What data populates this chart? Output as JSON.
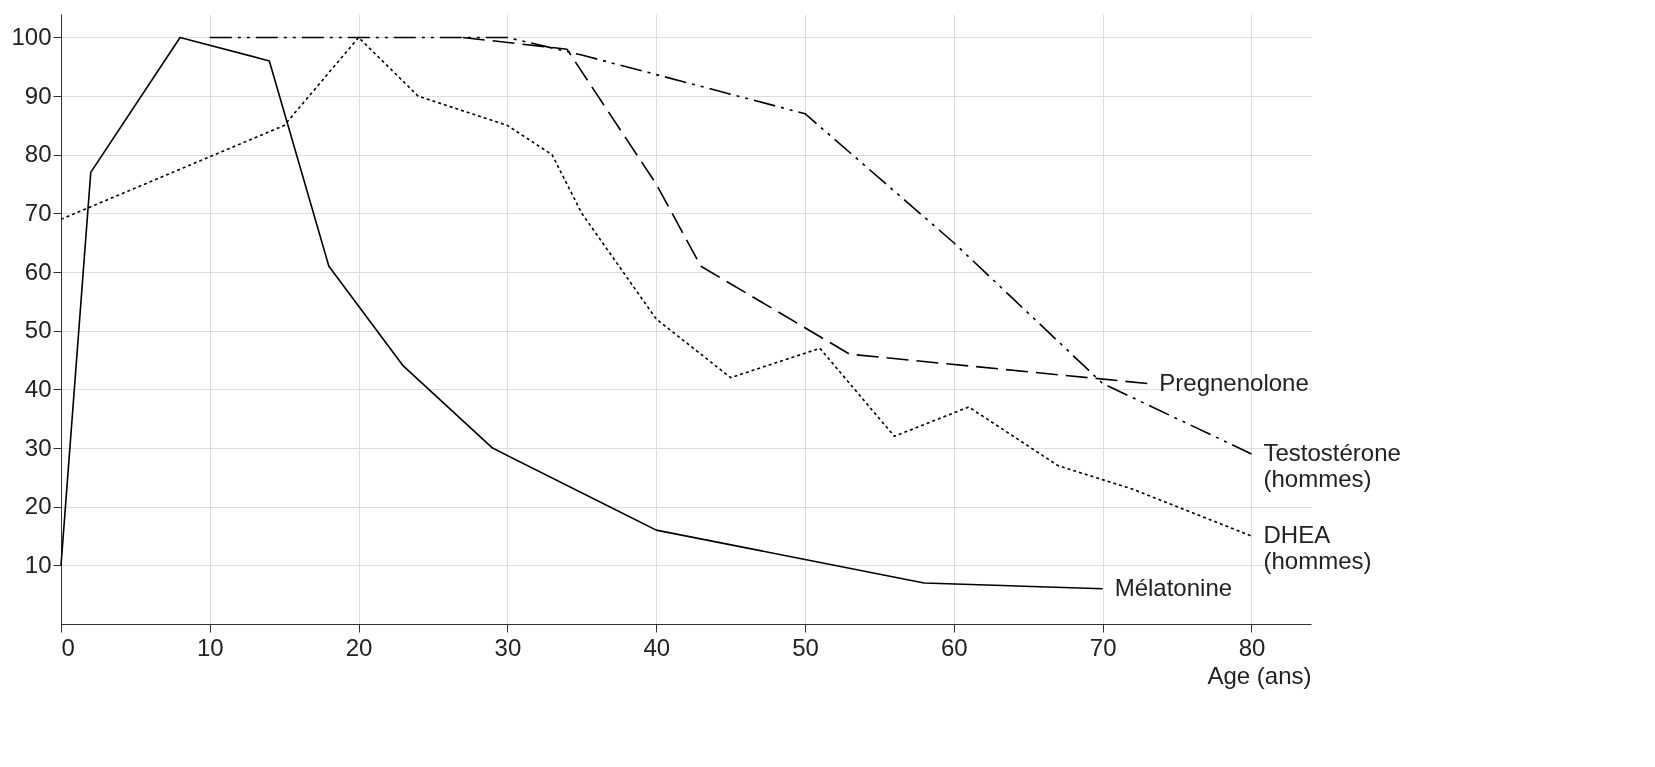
{
  "chart_data": {
    "type": "line",
    "xlabel": "Age (ans)",
    "xlim": [
      0,
      84
    ],
    "ylim": [
      0,
      104
    ],
    "xticks": [
      0,
      10,
      20,
      30,
      40,
      50,
      60,
      70,
      80
    ],
    "yticks": [
      10,
      20,
      30,
      40,
      50,
      60,
      70,
      80,
      90,
      100
    ],
    "grid": true,
    "series": [
      {
        "name": "Mélatonine",
        "color": "#000000",
        "line_style": "solid",
        "x": [
          0,
          2,
          8,
          14,
          18,
          23,
          29,
          40,
          50,
          58,
          70
        ],
        "values": [
          10,
          77,
          100,
          96,
          61,
          44,
          30,
          16,
          11,
          7,
          6
        ]
      },
      {
        "name": "DHEA\n(hommes)",
        "color": "#000000",
        "line_style": "dotted",
        "x": [
          0,
          15,
          20,
          24,
          30,
          33,
          35,
          40,
          45,
          51,
          56,
          61,
          67,
          72,
          80
        ],
        "values": [
          69,
          85,
          100,
          90,
          85,
          80,
          70,
          52,
          42,
          47,
          32,
          37,
          27,
          23,
          15
        ]
      },
      {
        "name": "Pregnenolone",
        "color": "#000000",
        "line_style": "dashed",
        "x": [
          27,
          34,
          40,
          43,
          53,
          73
        ],
        "values": [
          100,
          98,
          75,
          61,
          46,
          41
        ]
      },
      {
        "name": "Testostérone\n(hommes)",
        "color": "#000000",
        "line_style": "dashdot",
        "x": [
          10,
          30,
          35,
          50,
          60,
          70,
          80
        ],
        "values": [
          100,
          100,
          97,
          87,
          65,
          41,
          29
        ]
      }
    ]
  }
}
